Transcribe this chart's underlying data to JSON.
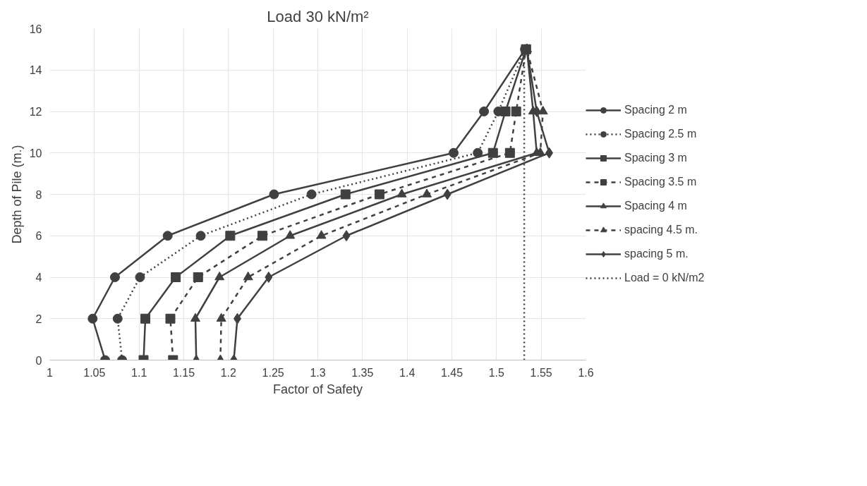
{
  "chart_data": {
    "type": "line",
    "title": "Load 30 kN/m²",
    "xlabel": "Factor of Safety",
    "ylabel": "Depth of Pile (m.)",
    "xlim": [
      1,
      1.6
    ],
    "xticks": [
      1,
      1.05,
      1.1,
      1.15,
      1.2,
      1.25,
      1.3,
      1.35,
      1.4,
      1.45,
      1.5,
      1.55,
      1.6
    ],
    "ylim": [
      0,
      16
    ],
    "yticks": [
      0,
      2,
      4,
      6,
      8,
      10,
      12,
      14,
      16
    ],
    "grid": true,
    "legend": "right",
    "series": [
      {
        "name": "Spacing 2 m",
        "color": "#404040",
        "marker": "circle",
        "line_style": "solid",
        "x": [
          1.062,
          1.048,
          1.073,
          1.132,
          1.251,
          1.452,
          1.486,
          1.532
        ],
        "values": [
          0,
          2,
          4,
          6,
          8,
          10,
          12,
          15
        ]
      },
      {
        "name": "Spacing 2.5 m",
        "color": "#404040",
        "marker": "circle",
        "line_style": "dotted",
        "x": [
          1.081,
          1.076,
          1.101,
          1.169,
          1.293,
          1.479,
          1.502,
          1.532
        ],
        "values": [
          0,
          2,
          4,
          6,
          8,
          10,
          12,
          15
        ]
      },
      {
        "name": "Spacing 3 m",
        "color": "#404040",
        "marker": "square",
        "line_style": "solid",
        "x": [
          1.105,
          1.107,
          1.141,
          1.202,
          1.331,
          1.496,
          1.51,
          1.533
        ],
        "values": [
          0,
          2,
          4,
          6,
          8,
          10,
          12,
          15
        ]
      },
      {
        "name": "Spacing 3.5 m",
        "color": "#404040",
        "marker": "square",
        "line_style": "dashed",
        "x": [
          1.138,
          1.135,
          1.166,
          1.238,
          1.369,
          1.515,
          1.522,
          1.533
        ],
        "values": [
          0,
          2,
          4,
          6,
          8,
          10,
          12,
          15
        ]
      },
      {
        "name": "Spacing 4 m",
        "color": "#404040",
        "marker": "triangle",
        "line_style": "solid",
        "x": [
          1.164,
          1.163,
          1.19,
          1.269,
          1.394,
          1.545,
          1.541,
          1.534
        ],
        "values": [
          0,
          2,
          4,
          6,
          8,
          10,
          12,
          15
        ]
      },
      {
        "name": "spacing 4.5 m.",
        "color": "#404040",
        "marker": "triangle",
        "line_style": "dashed",
        "x": [
          1.191,
          1.192,
          1.222,
          1.304,
          1.422,
          1.549,
          1.552,
          1.534
        ],
        "values": [
          0,
          2,
          4,
          6,
          8,
          10,
          12,
          15
        ]
      },
      {
        "name": "spacing 5 m.",
        "color": "#404040",
        "marker": "diamond",
        "line_style": "solid",
        "x": [
          1.206,
          1.21,
          1.245,
          1.332,
          1.445,
          1.559,
          1.545,
          1.534
        ],
        "values": [
          0,
          2,
          4,
          6,
          8,
          10,
          12,
          15
        ]
      },
      {
        "name": "Load = 0 kN/m2",
        "color": "#404040",
        "marker": "none",
        "line_style": "dotted",
        "x": [
          1.531,
          1.531
        ],
        "values": [
          0,
          15
        ]
      }
    ]
  }
}
